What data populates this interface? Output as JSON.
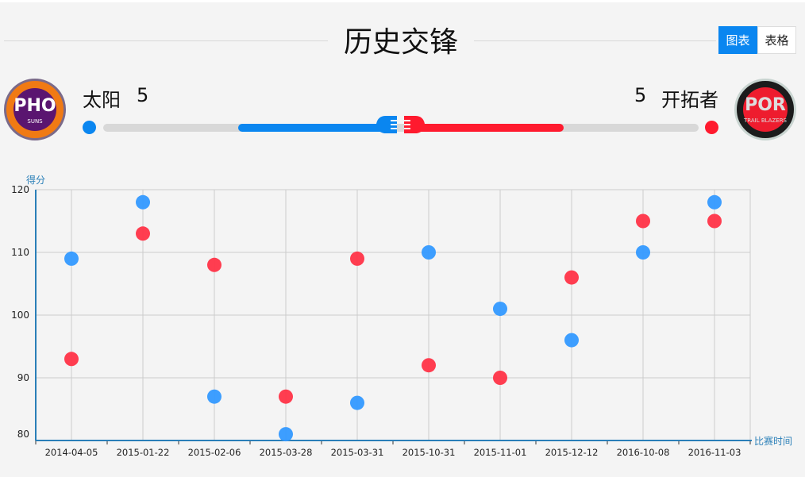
{
  "header": {
    "title": "历史交锋",
    "toggle": {
      "chart": "图表",
      "table": "表格",
      "active": "chart"
    }
  },
  "teams": {
    "home": {
      "name": "太阳",
      "wins": "5",
      "logo_text": "PHO",
      "logo_sub": "SUNS",
      "color": "#0a86f0"
    },
    "away": {
      "name": "开拓者",
      "wins": "5",
      "logo_text": "POR",
      "logo_sub": "TRAIL BLAZERS",
      "color": "#ff1a2e"
    }
  },
  "chart_data": {
    "type": "scatter",
    "ylabel": "得分",
    "xlabel": "比赛时间",
    "ylim": [
      80,
      120
    ],
    "yticks": [
      80,
      90,
      100,
      110,
      120
    ],
    "grid": true,
    "categories": [
      "2014-04-05",
      "2015-01-22",
      "2015-02-06",
      "2015-03-28",
      "2015-03-31",
      "2015-10-31",
      "2015-11-01",
      "2015-12-12",
      "2016-10-08",
      "2016-11-03"
    ],
    "series": [
      {
        "color": "#3399ff",
        "values": [
          109,
          118,
          87,
          81,
          86,
          110,
          101,
          96,
          110,
          118
        ]
      },
      {
        "color": "#ff3347",
        "values": [
          93,
          113,
          108,
          87,
          109,
          92,
          90,
          106,
          115,
          115
        ]
      }
    ]
  }
}
